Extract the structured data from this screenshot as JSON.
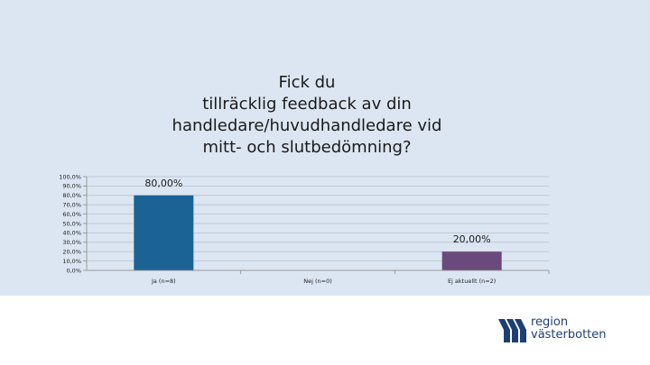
{
  "chart_data": {
    "type": "bar",
    "title": "Fick du\ntillräcklig feedback av din\nhandledare/huvudhandledare vid\nmitt- och slutbedömning?",
    "categories": [
      "Ja (n=8)",
      "Nej (n=0)",
      "Ej aktuellt (n=2)"
    ],
    "values": [
      80,
      0,
      20
    ],
    "data_labels": [
      "80,00%",
      "",
      "20,00%"
    ],
    "bar_colors": [
      "#1b6394",
      "#1b6394",
      "#6a4a7a"
    ],
    "ylim": [
      0,
      100
    ],
    "yticks": [
      {
        "value": 100,
        "label": "100,0%"
      },
      {
        "value": 90,
        "label": "90,0%"
      },
      {
        "value": 80,
        "label": "80,0%"
      },
      {
        "value": 70,
        "label": "70,0%"
      },
      {
        "value": 60,
        "label": "60,0%"
      },
      {
        "value": 50,
        "label": "50,0%"
      },
      {
        "value": 40,
        "label": "40,0%"
      },
      {
        "value": 30,
        "label": "30,0%"
      },
      {
        "value": 20,
        "label": "20,0%"
      },
      {
        "value": 10,
        "label": "10,0%"
      },
      {
        "value": 0,
        "label": "0,0%"
      }
    ],
    "grid": true,
    "xlabel": "",
    "ylabel": ""
  },
  "logo": {
    "line1": "region",
    "line2": "västerbotten",
    "color": "#1d3f73"
  }
}
